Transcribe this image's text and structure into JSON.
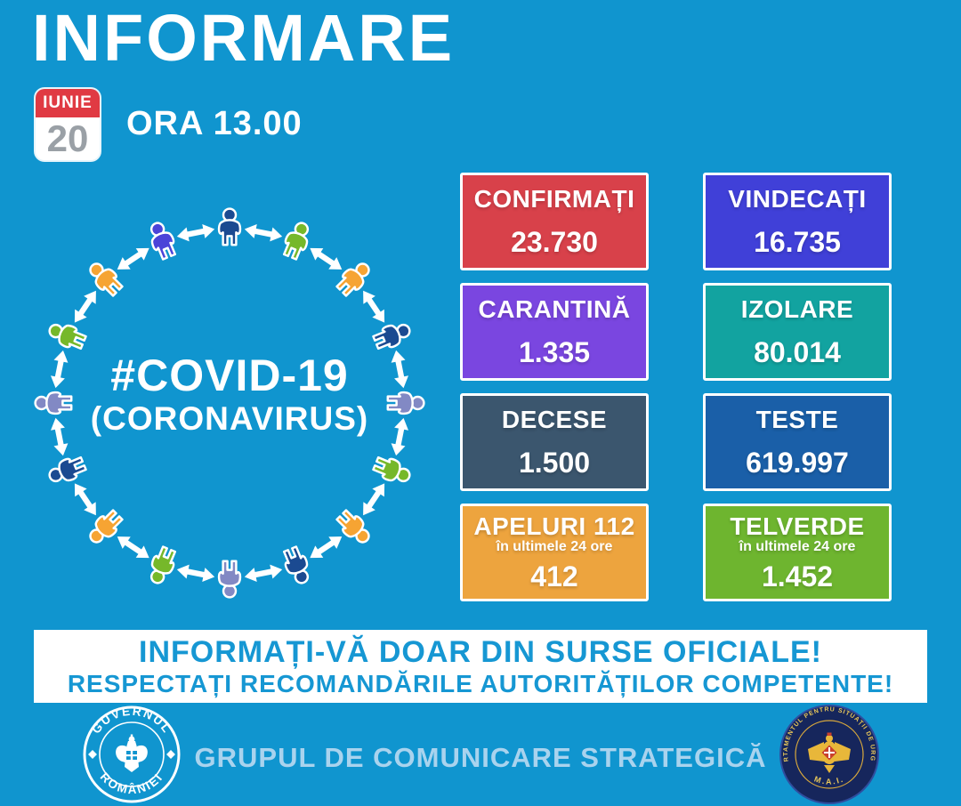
{
  "colors": {
    "background": "#1095cf",
    "banner_text": "#1697d3",
    "footer_text": "#a9d3ee",
    "date_red": "#e03a43",
    "date_day_gray": "#9aa0a6",
    "arrow_white": "#ffffff"
  },
  "header": {
    "title": "INFORMARE",
    "date": {
      "month": "IUNIE",
      "day": "20"
    },
    "time": "ORA 13.00"
  },
  "hero": {
    "hashtag": "#COVID-19",
    "subtitle": "(CORONAVIRUS)",
    "people_colors": [
      "#1b4a91",
      "#76b82a",
      "#f6a433",
      "#1b4a91",
      "#8289c4",
      "#76b82a",
      "#f6a433",
      "#1b4a91",
      "#8289c4",
      "#76b82a",
      "#f6a433",
      "#1b4a91",
      "#8289c4",
      "#76b82a",
      "#f6a433",
      "#4b43d8"
    ]
  },
  "stats": [
    {
      "id": "confirmati",
      "label": "CONFIRMAȚI",
      "sublabel": "",
      "value": "23.730",
      "color": "#d8414a"
    },
    {
      "id": "vindecati",
      "label": "VINDECAȚI",
      "sublabel": "",
      "value": "16.735",
      "color": "#4040d8"
    },
    {
      "id": "carantina",
      "label": "CARANTINĂ",
      "sublabel": "",
      "value": "1.335",
      "color": "#7a46e0"
    },
    {
      "id": "izolare",
      "label": "IZOLARE",
      "sublabel": "",
      "value": "80.014",
      "color": "#12a3a0"
    },
    {
      "id": "decese",
      "label": "DECESE",
      "sublabel": "",
      "value": "1.500",
      "color": "#3b566e"
    },
    {
      "id": "teste",
      "label": "TESTE",
      "sublabel": "",
      "value": "619.997",
      "color": "#1a5fa8"
    },
    {
      "id": "apeluri-112",
      "label": "APELURI 112",
      "sublabel": "în ultimele 24 ore",
      "value": "412",
      "color": "#eda43e"
    },
    {
      "id": "telverde",
      "label": "TELVERDE",
      "sublabel": "în ultimele 24 ore",
      "value": "1.452",
      "color": "#6eb52f"
    }
  ],
  "banner": {
    "line1": "INFORMAȚI-VĂ DOAR DIN SURSE OFICIALE!",
    "line2": "RESPECTAȚI RECOMANDĂRILE AUTORITĂȚILOR COMPETENTE!"
  },
  "footer": {
    "gov_seal": {
      "top_text": "GUVERNUL",
      "bottom_text": "ROMÂNIEI"
    },
    "message": "GRUPUL DE COMUNICARE STRATEGICĂ",
    "dsu_seal": {
      "arc_text": "DEPARTAMENTUL PENTRU SITUAȚII DE URGENȚĂ",
      "bottom_text": "M.A.I."
    }
  }
}
